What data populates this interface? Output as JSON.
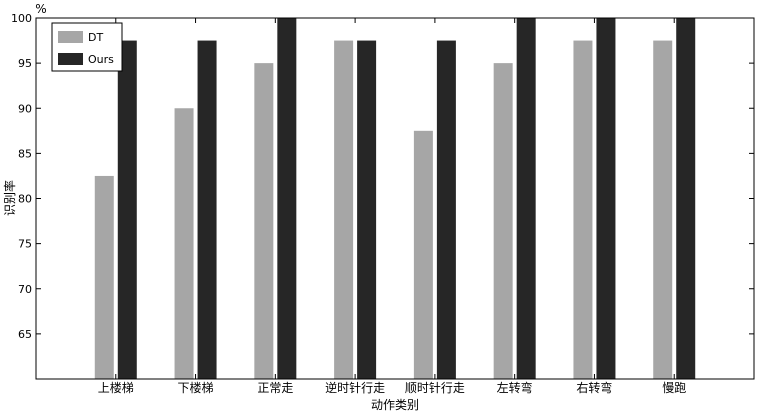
{
  "chart_data": {
    "type": "bar",
    "title": "",
    "xlabel": "动作类别",
    "ylabel": "识别率",
    "yunit": "%",
    "ylim": [
      60,
      100
    ],
    "yticks": [
      65,
      70,
      75,
      80,
      85,
      90,
      95,
      100
    ],
    "grid": false,
    "legend_position": "top-left",
    "categories": [
      "上楼梯",
      "下楼梯",
      "正常走",
      "逆时针行走",
      "顺时针行走",
      "左转弯",
      "右转弯",
      "慢跑"
    ],
    "series": [
      {
        "name": "DT",
        "color": "#a6a6a6",
        "values": [
          82.5,
          90,
          95,
          97.5,
          87.5,
          95,
          97.5,
          97.5
        ]
      },
      {
        "name": "Ours",
        "color": "#262626",
        "values": [
          97.5,
          97.5,
          100,
          97.5,
          97.5,
          100,
          100,
          100
        ]
      }
    ]
  }
}
